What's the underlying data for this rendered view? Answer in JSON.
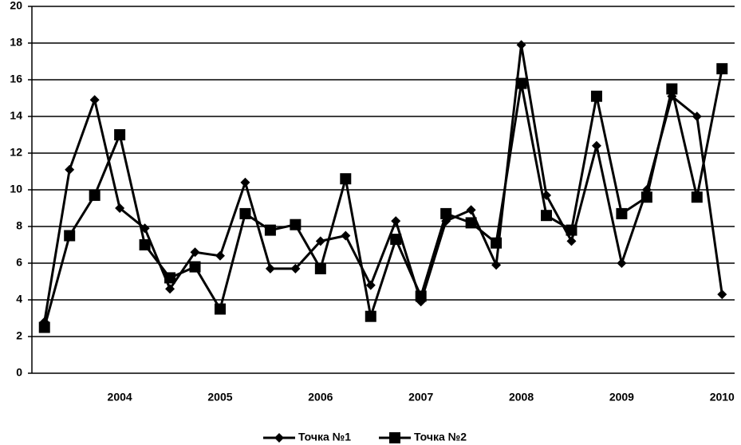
{
  "chart_data": {
    "type": "line",
    "categories": [
      null,
      null,
      null,
      "2004",
      null,
      null,
      null,
      "2005",
      null,
      null,
      null,
      "2006",
      null,
      null,
      null,
      "2007",
      null,
      null,
      null,
      "2008",
      null,
      null,
      null,
      "2009",
      null,
      null,
      null,
      "2010"
    ],
    "series": [
      {
        "name": "Точка №1",
        "color": "#000000",
        "marker": "diamond",
        "values": [
          2.8,
          11.1,
          14.9,
          9.0,
          7.9,
          4.6,
          6.6,
          6.4,
          10.4,
          5.7,
          5.7,
          7.2,
          7.5,
          4.8,
          8.3,
          3.9,
          8.3,
          8.9,
          5.9,
          17.9,
          9.7,
          7.2,
          12.4,
          6.0,
          10.0,
          15.1,
          14.0,
          4.3
        ]
      },
      {
        "name": "Точка №2",
        "color": "#000000",
        "marker": "square",
        "values": [
          2.5,
          7.5,
          9.7,
          13.0,
          7.0,
          5.2,
          5.8,
          3.5,
          8.7,
          7.8,
          8.1,
          5.7,
          10.6,
          3.1,
          7.3,
          4.2,
          8.7,
          8.2,
          7.1,
          15.8,
          8.6,
          7.8,
          15.1,
          8.7,
          9.6,
          15.5,
          9.6,
          16.6
        ]
      }
    ],
    "ylim": [
      0,
      20
    ],
    "yticks": [
      0,
      2,
      4,
      6,
      8,
      10,
      12,
      14,
      16,
      18,
      20
    ],
    "grid": true,
    "legend": "bottom"
  }
}
